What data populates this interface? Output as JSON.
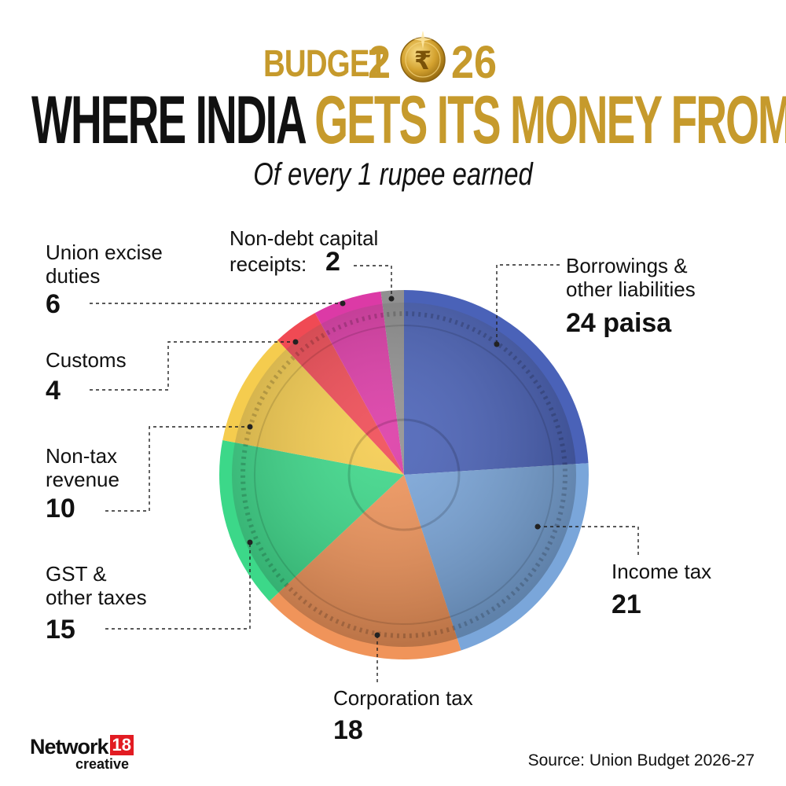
{
  "header": {
    "budget_word": "BUDGET",
    "year_prefix": "2",
    "year_suffix": "26",
    "headline_part1": "WHERE INDIA ",
    "headline_part2": "GETS ITS MONEY FROM",
    "subtitle": "Of every 1 rupee earned"
  },
  "chart_data": {
    "type": "pie",
    "title": "WHERE INDIA GETS ITS MONEY FROM",
    "subtitle": "Of every 1 rupee earned",
    "unit": "paisa",
    "slices": [
      {
        "label": "Borrowings & other liabilities",
        "value": 24,
        "value_text": "24 paisa",
        "color": "#4a62b8"
      },
      {
        "label": "Income tax",
        "value": 21,
        "value_text": "21",
        "color": "#7aa6da"
      },
      {
        "label": "Corporation tax",
        "value": 18,
        "value_text": "18",
        "color": "#f0945a"
      },
      {
        "label": "GST & other taxes",
        "value": 15,
        "value_text": "15",
        "color": "#3cd889"
      },
      {
        "label": "Non-tax revenue",
        "value": 10,
        "value_text": "10",
        "color": "#f5cc4e"
      },
      {
        "label": "Customs",
        "value": 4,
        "value_text": "4",
        "color": "#f04a54"
      },
      {
        "label": "Union excise duties",
        "value": 6,
        "value_text": "6",
        "color": "#dc3aa6"
      },
      {
        "label": "Non-debt capital receipts:",
        "value": 2,
        "value_text": "2",
        "color": "#909090"
      }
    ]
  },
  "labels": {
    "borrowings_line1": "Borrowings &",
    "borrowings_line2": "other liabilities",
    "income_tax": "Income tax",
    "corporation_tax": "Corporation tax",
    "gst_line1": "GST &",
    "gst_line2": "other taxes",
    "nontax_line1": "Non-tax",
    "nontax_line2": "revenue",
    "customs": "Customs",
    "excise_line1": "Union excise",
    "excise_line2": "duties",
    "nondebt_line1": "Non-debt capital",
    "nondebt_line2": "receipts:"
  },
  "footer": {
    "logo_network": "Network",
    "logo_18": "18",
    "logo_creative": "creative",
    "source": "Source: Union Budget 2026-27"
  },
  "colors": {
    "accent_gold": "#c69a2c",
    "logo_red": "#e21b22"
  }
}
